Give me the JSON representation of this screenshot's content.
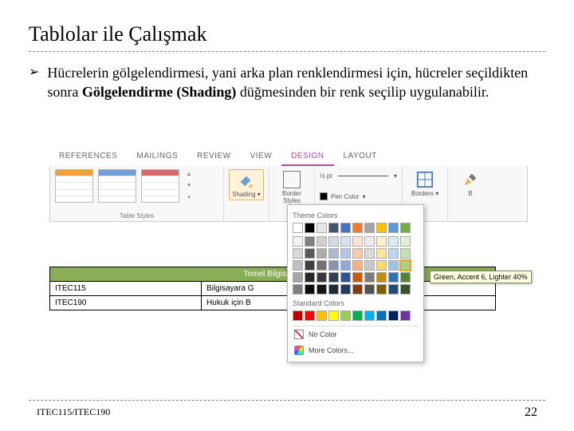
{
  "slide": {
    "title": "Tablolar ile Çalışmak",
    "bullet_marker": "➢",
    "bullet_html_parts": {
      "p1": "Hücrelerin gölgelendirmesi, yani arka plan renklendirmesi için, hücreler seçildikten sonra ",
      "bold": "Gölgelendirme (Shading)",
      "p2": " düğmesinden bir renk seçilip uygulanabilir."
    }
  },
  "ribbon": {
    "tabs": {
      "references": "REFERENCES",
      "mailings": "MAILINGS",
      "review": "REVIEW",
      "view": "VIEW",
      "design": "DESIGN",
      "layout": "LAYOUT"
    },
    "active_tab": "DESIGN",
    "groups": {
      "table_styles_label": "Table Styles",
      "borders_label": "Borders"
    },
    "thumb_header_colors": [
      "#f3a03a",
      "#6fa0d9",
      "#d36a6a"
    ],
    "shading_button": {
      "label": "Shading"
    },
    "border_styles_label": "Border Styles",
    "line_weight": "½ pt",
    "pen_color_label": "Pen Color",
    "borders_btn_label": "Borders",
    "border_painter_label": "B"
  },
  "doc_table": {
    "header": "Temel Bilgisayar",
    "rows": [
      {
        "c1": "ITEC115",
        "c2": "Bilgisayara G"
      },
      {
        "c1": "ITEC190",
        "c2": "Hukuk için B"
      }
    ],
    "header_bg": "#8aad57"
  },
  "popup": {
    "section_theme": "Theme Colors",
    "section_standard": "Standard Colors",
    "no_color": "No Color",
    "more_colors": "More Colors...",
    "tooltip": "Green, Accent 6, Lighter 40%",
    "theme_row_headers": [
      "#ffffff",
      "#000000",
      "#e7e6e6",
      "#44546a",
      "#4472c4",
      "#ed7d31",
      "#a5a5a5",
      "#ffc000",
      "#5b9bd5",
      "#70ad47"
    ],
    "theme_tints": [
      [
        "#f2f2f2",
        "#7f7f7f",
        "#d0cece",
        "#d6dce4",
        "#d9e2f3",
        "#fbe5d5",
        "#ededed",
        "#fff2cc",
        "#deebf6",
        "#e2efd9"
      ],
      [
        "#d8d8d8",
        "#595959",
        "#aeabab",
        "#adb9ca",
        "#b4c6e7",
        "#f7cbac",
        "#dbdbdb",
        "#fee599",
        "#bdd7ee",
        "#c5e0b3"
      ],
      [
        "#bfbfbf",
        "#3f3f3f",
        "#757070",
        "#8496b0",
        "#8eaadb",
        "#f4b183",
        "#c9c9c9",
        "#ffd965",
        "#9cc3e5",
        "#a8d08d"
      ],
      [
        "#a5a5a5",
        "#262626",
        "#3a3838",
        "#323f4f",
        "#2f5496",
        "#c55a11",
        "#7b7b7b",
        "#bf9000",
        "#2e75b5",
        "#538135"
      ],
      [
        "#7f7f7f",
        "#0c0c0c",
        "#171616",
        "#222a35",
        "#1f3864",
        "#833c0b",
        "#525252",
        "#7f6000",
        "#1e4e79",
        "#375623"
      ]
    ],
    "standard_row": [
      "#c00000",
      "#ff0000",
      "#ffc000",
      "#ffff00",
      "#92d050",
      "#00b050",
      "#00b0f0",
      "#0070c0",
      "#002060",
      "#7030a0"
    ],
    "selected": {
      "row": 2,
      "col": 9
    }
  },
  "footer": {
    "left": "ITEC115/ITEC190",
    "page": "22"
  },
  "colors": {
    "accent": "#b148a6"
  }
}
